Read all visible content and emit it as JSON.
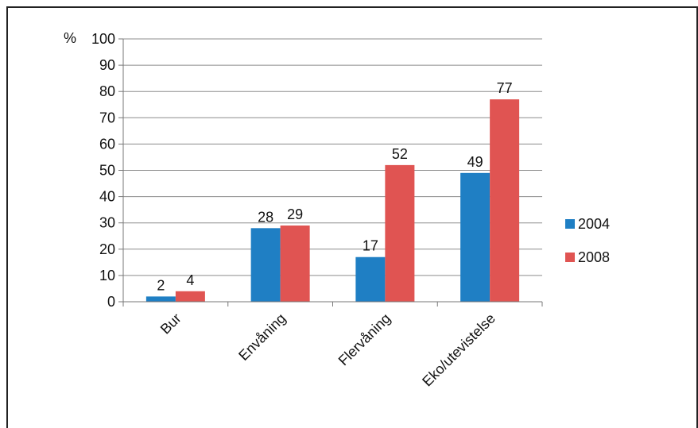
{
  "chart_data": {
    "type": "bar",
    "ylabel": "%",
    "ylim": [
      0,
      100
    ],
    "yticks": [
      "0",
      "10",
      "20",
      "30",
      "40",
      "50",
      "60",
      "70",
      "80",
      "90",
      "100"
    ],
    "categories": [
      "Bur",
      "Envåning",
      "Flervåning",
      "Eko/utevistelse"
    ],
    "series": [
      {
        "name": "2004",
        "color": "#1f7fc4",
        "values": [
          2,
          28,
          17,
          49
        ]
      },
      {
        "name": "2008",
        "color": "#e05452",
        "values": [
          4,
          29,
          52,
          77
        ]
      }
    ],
    "grid": true,
    "legend": "right"
  }
}
